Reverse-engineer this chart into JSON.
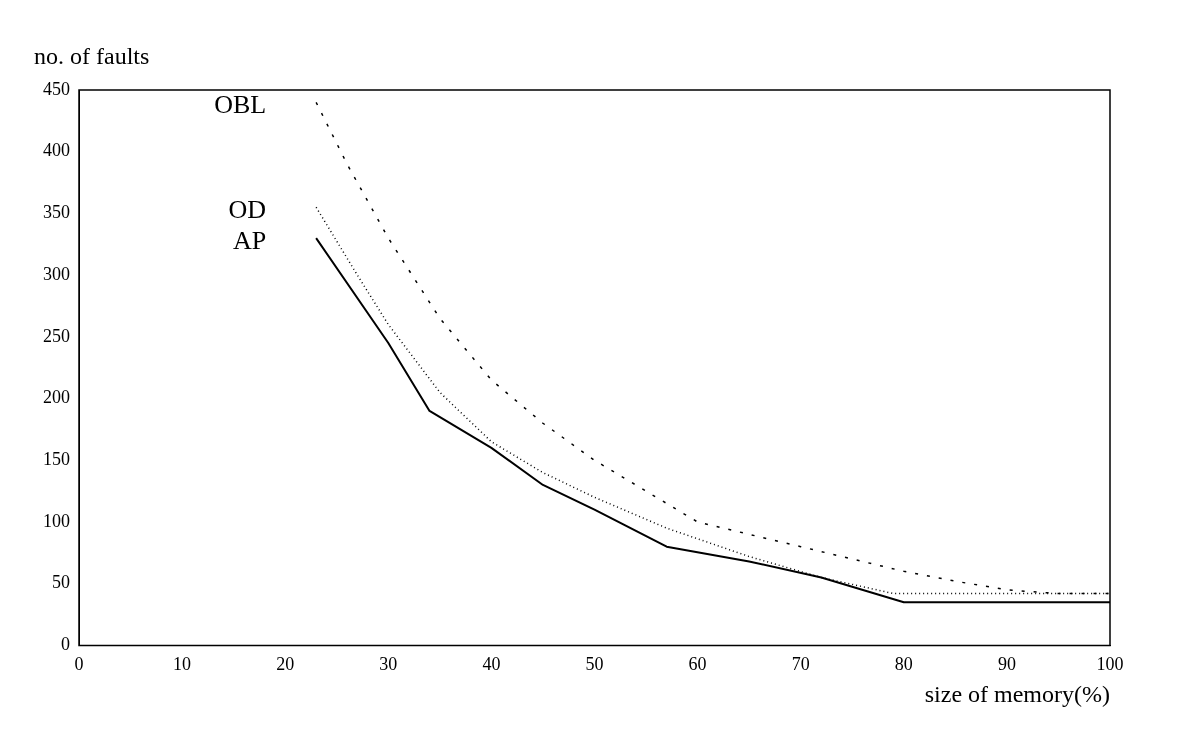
{
  "chart_data": {
    "type": "line",
    "xlabel": "size of memory(%)",
    "ylabel": "no. of faults",
    "xlim": [
      0,
      100
    ],
    "xticks": [
      0,
      10,
      20,
      30,
      40,
      50,
      60,
      70,
      80,
      90,
      100
    ],
    "ylim": [
      0,
      450
    ],
    "yticks": [
      0,
      50,
      100,
      150,
      200,
      250,
      300,
      350,
      400,
      450
    ],
    "grid": false,
    "legend": false,
    "marker": "none",
    "series": [
      {
        "name": "OBL",
        "color": "#000000",
        "line_style": "dashed",
        "x": [
          23,
          26,
          30,
          35,
          40,
          45,
          50,
          55,
          60,
          65,
          70,
          75,
          80,
          85,
          90,
          95,
          100
        ],
        "values": [
          440,
          390,
          330,
          265,
          215,
          180,
          150,
          125,
          100,
          90,
          80,
          70,
          60,
          52,
          45,
          42,
          42
        ]
      },
      {
        "name": "OD",
        "color": "#000000",
        "line_style": "dotted",
        "x": [
          23,
          27,
          30,
          35,
          40,
          45,
          50,
          57,
          65,
          72,
          79,
          85,
          90,
          100
        ],
        "values": [
          355,
          300,
          260,
          205,
          165,
          140,
          120,
          95,
          72,
          55,
          42,
          42,
          42,
          42
        ]
      },
      {
        "name": "AP",
        "color": "#000000",
        "line_style": "solid",
        "x": [
          23,
          30,
          34,
          40,
          45,
          50,
          57,
          65,
          72,
          80,
          90,
          100
        ],
        "values": [
          330,
          245,
          190,
          160,
          130,
          110,
          80,
          68,
          55,
          35,
          35,
          35
        ]
      }
    ]
  }
}
